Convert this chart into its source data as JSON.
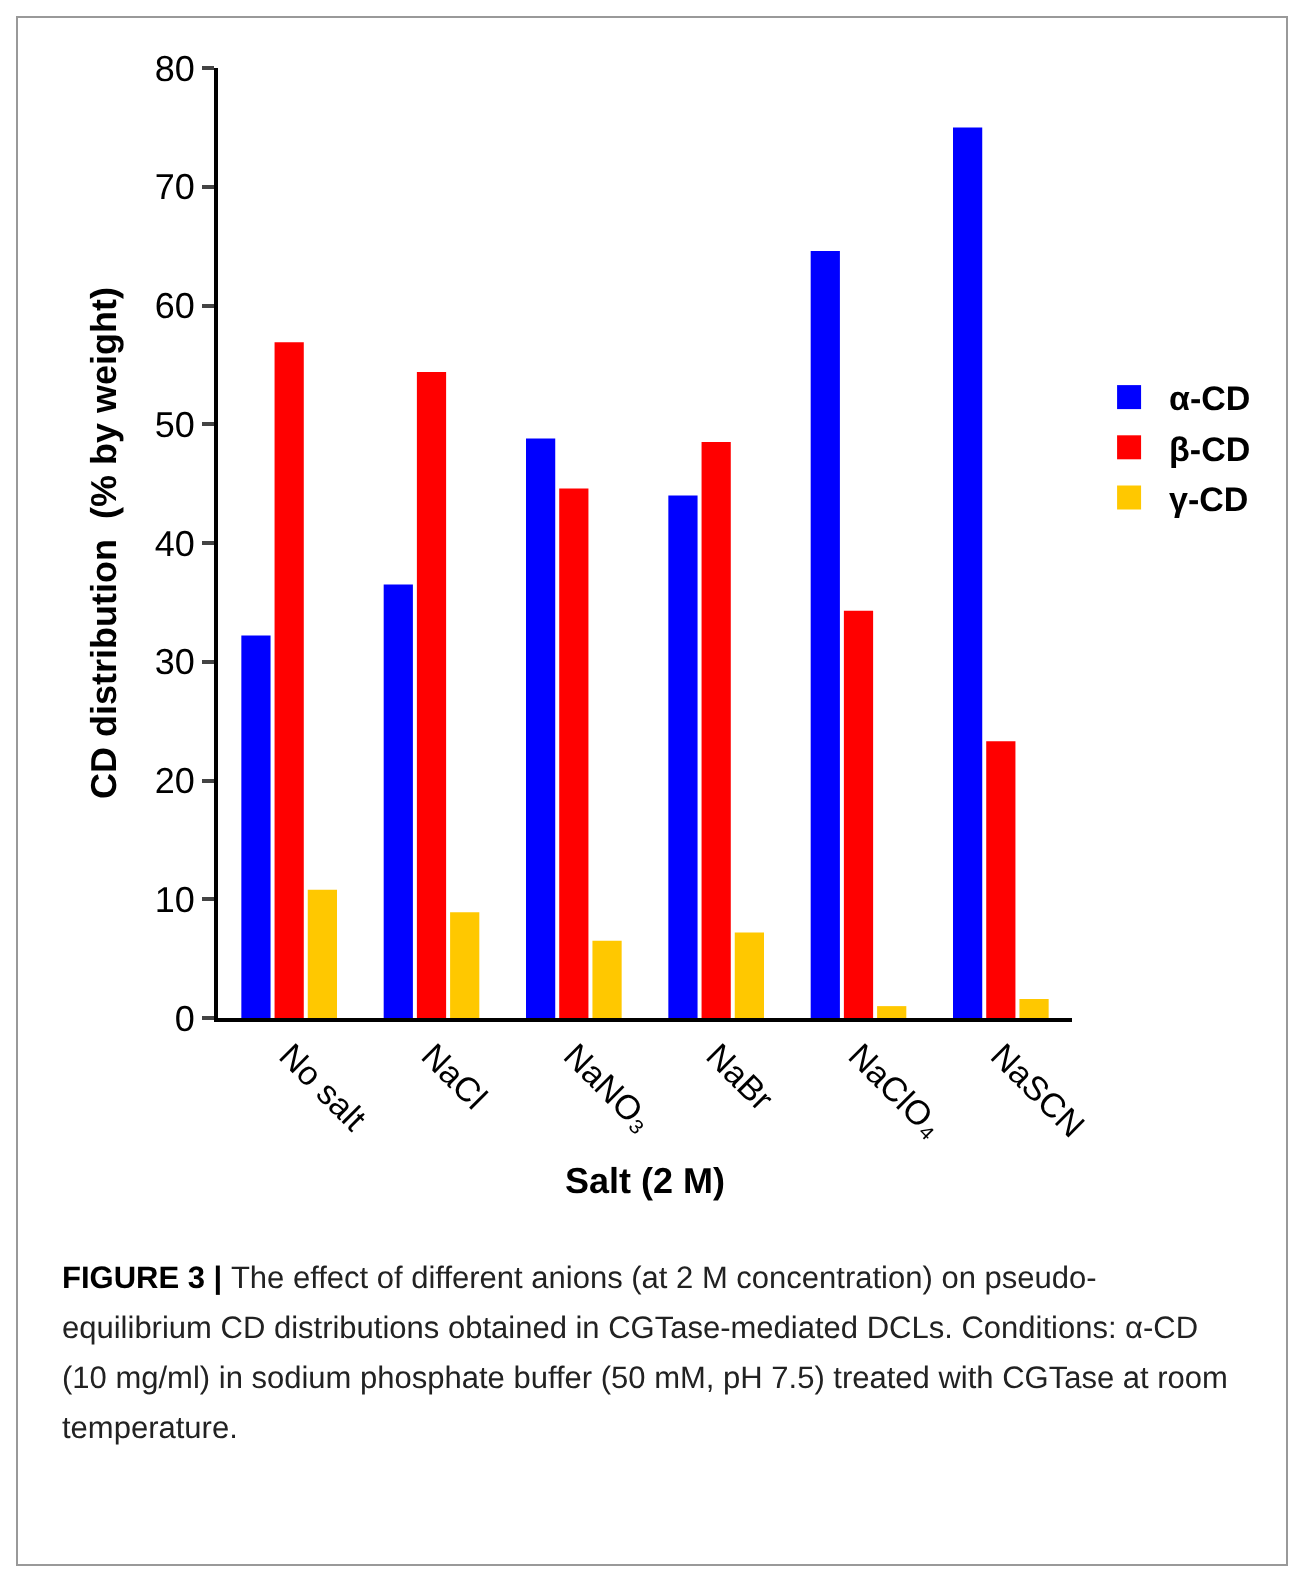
{
  "chart_data": {
    "type": "bar",
    "xlabel": "Salt (2 M)",
    "ylabel": "CD distribution  (% by weight)",
    "categories": [
      "No salt",
      "NaCl",
      "NaNO₃",
      "NaBr",
      "NaClO₄",
      "NaSCN"
    ],
    "series": [
      {
        "name": "α-CD",
        "color": "#0000ff",
        "values": [
          32.2,
          36.5,
          48.8,
          44.0,
          64.6,
          75.0
        ]
      },
      {
        "name": "β-CD",
        "color": "#ff0000",
        "values": [
          56.9,
          54.4,
          44.6,
          48.5,
          34.3,
          23.3
        ]
      },
      {
        "name": "γ-CD",
        "color": "#ffc800",
        "values": [
          10.8,
          8.9,
          6.5,
          7.2,
          1.0,
          1.6
        ]
      }
    ],
    "ylim": [
      0,
      80
    ],
    "yticks": [
      0,
      10,
      20,
      30,
      40,
      50,
      60,
      70,
      80
    ],
    "grid": false,
    "legend": "right",
    "annotations": [
      "FIGURE 3 |",
      "The effect of different anions (at 2 M concentration) on pseudo-equilibrium CD distributions obtained in CGTase-mediated DCLs. Conditions: α-CD (10 mg/ml) in sodium phosphate buffer (50 mM, pH 7.5) treated with CGTase at room temperature."
    ]
  }
}
